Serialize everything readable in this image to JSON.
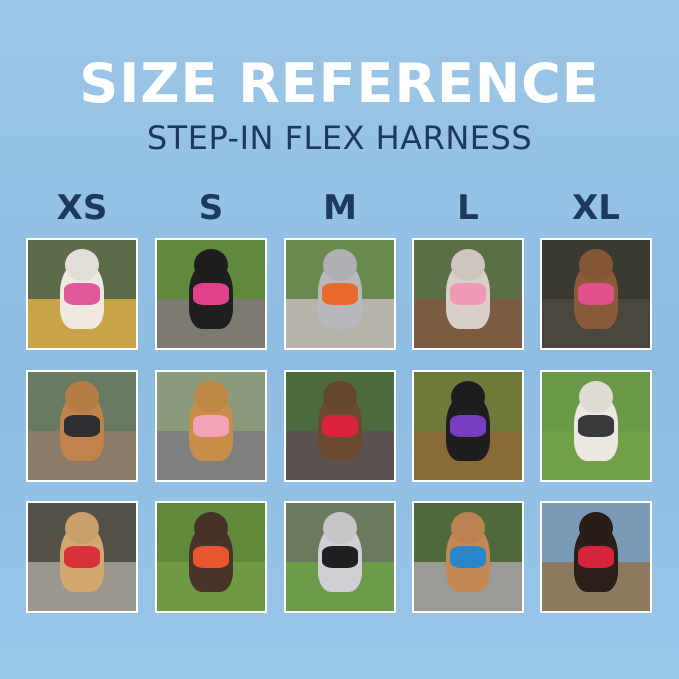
{
  "header": {
    "title": "SIZE REFERENCE",
    "subtitle": "STEP-IN FLEX HARNESS"
  },
  "sizes": [
    {
      "label": "XS",
      "photos": [
        {
          "bg": "#5d6b4a",
          "ground": "#c9a34a",
          "dog": "#efe9e2",
          "harness": "#e05a9a"
        },
        {
          "bg": "#6a7a62",
          "ground": "#8b7b6a",
          "dog": "#c0834a",
          "harness": "#2f2f33"
        },
        {
          "bg": "#555049",
          "ground": "#9a9690",
          "dog": "#d2a870",
          "harness": "#d8313a"
        }
      ]
    },
    {
      "label": "S",
      "photos": [
        {
          "bg": "#5f8a3e",
          "ground": "#7d7a74",
          "dog": "#1f1f1f",
          "harness": "#e0418a"
        },
        {
          "bg": "#8a9a7a",
          "ground": "#7f7f80",
          "dog": "#c98d4a",
          "harness": "#f2a3b5"
        },
        {
          "bg": "#5f8a3c",
          "ground": "#6d9a42",
          "dog": "#4a3428",
          "harness": "#e8552e"
        }
      ]
    },
    {
      "label": "M",
      "photos": [
        {
          "bg": "#6a8a50",
          "ground": "#b7b4ae",
          "dog": "#b9b8bc",
          "harness": "#e86a2a"
        },
        {
          "bg": "#4c6a3e",
          "ground": "#5a5250",
          "dog": "#6a4a30",
          "harness": "#d9243a"
        },
        {
          "bg": "#6b7a5e",
          "ground": "#6e9b4a",
          "dog": "#d0d0d4",
          "harness": "#1f1f22"
        }
      ]
    },
    {
      "label": "L",
      "photos": [
        {
          "bg": "#5c6e48",
          "ground": "#7a5c42",
          "dog": "#d8cfc8",
          "harness": "#ef9ab5"
        },
        {
          "bg": "#6f7a3a",
          "ground": "#8b6a3a",
          "dog": "#1e1e1e",
          "harness": "#7a3cc0"
        },
        {
          "bg": "#4e6a3a",
          "ground": "#9a9a96",
          "dog": "#c48a55",
          "harness": "#2a86c8"
        }
      ]
    },
    {
      "label": "XL",
      "photos": [
        {
          "bg": "#3a3a30",
          "ground": "#4a4640",
          "dog": "#8a5a3a",
          "harness": "#e0508a"
        },
        {
          "bg": "#6a9a48",
          "ground": "#72a048",
          "dog": "#ece7e0",
          "harness": "#3a3a3c"
        },
        {
          "bg": "#7a9ab8",
          "ground": "#8b7a5e",
          "dog": "#2a1e18",
          "harness": "#d8243a"
        }
      ]
    }
  ]
}
